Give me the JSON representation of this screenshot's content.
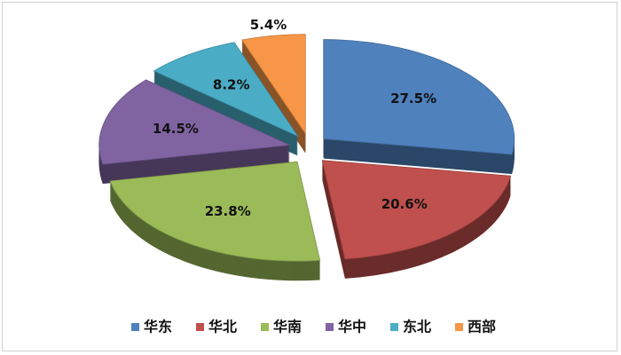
{
  "chart_data": {
    "type": "pie",
    "style": "3d-exploded",
    "categories": [
      "华东",
      "华北",
      "华南",
      "华中",
      "东北",
      "西部"
    ],
    "values": [
      27.5,
      20.6,
      23.8,
      14.5,
      8.2,
      5.4
    ],
    "data_labels": [
      "27.5%",
      "20.6%",
      "23.8%",
      "14.5%",
      "8.2%",
      "5.4%"
    ],
    "colors": [
      "#4f81bd",
      "#c0504d",
      "#9bbb59",
      "#8064a2",
      "#4bacc6",
      "#f79646"
    ],
    "legend_position": "bottom"
  }
}
